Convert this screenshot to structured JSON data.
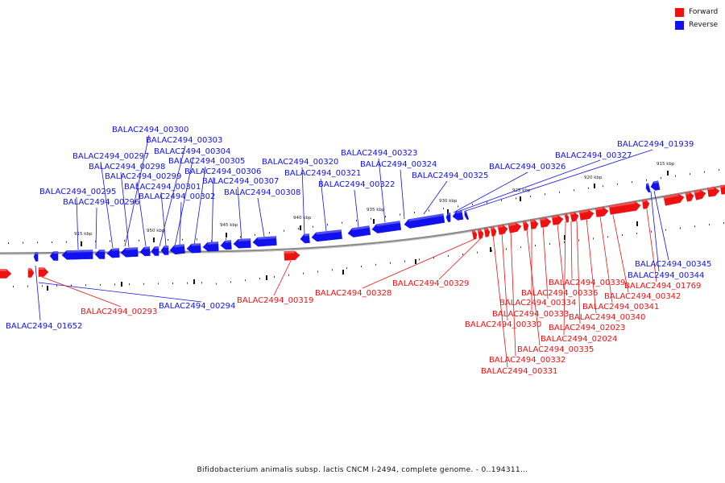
{
  "colors": {
    "forward": "#ee1111",
    "reverse": "#1111ee",
    "axis": "#8a8a8a"
  },
  "legend": [
    {
      "label": "Forward",
      "color": "#ee1111"
    },
    {
      "label": "Reverse",
      "color": "#1111ee"
    }
  ],
  "ticks": [
    "915 kbp",
    "930 kbp",
    "935 kbp",
    "940 kbp",
    "945 kbp",
    "950 kbp",
    "925 kbp",
    "920 kbp",
    "915 kbp"
  ],
  "genes": {
    "reverse": [
      "BALAC2494_00300",
      "BALAC2494_00303",
      "BALAC2494_00304",
      "BALAC2494_00297",
      "BALAC2494_00305",
      "BALAC2494_00298",
      "BALAC2494_00306",
      "BALAC2494_00299",
      "BALAC2494_00307",
      "BALAC2494_00301",
      "BALAC2494_00295",
      "BALAC2494_00308",
      "BALAC2494_00302",
      "BALAC2494_00296",
      "BALAC2494_00320",
      "BALAC2494_00321",
      "BALAC2494_00322",
      "BALAC2494_00323",
      "BALAC2494_00324",
      "BALAC2494_00325",
      "BALAC2494_00326",
      "BALAC2494_00327",
      "BALAC2494_01939",
      "BALAC2494_00345",
      "BALAC2494_00344",
      "BALAC2494_00294",
      "BALAC2494_01652"
    ],
    "forward": [
      "BALAC2494_00293",
      "BALAC2494_00319",
      "BALAC2494_00328",
      "BALAC2494_00329",
      "BALAC2494_00339",
      "BALAC2494_01769",
      "BALAC2494_00336",
      "BALAC2494_00342",
      "BALAC2494_00334",
      "BALAC2494_00341",
      "BALAC2494_00333",
      "BALAC2494_00340",
      "BALAC2494_00330",
      "BALAC2494_02023",
      "BALAC2494_02024",
      "BALAC2494_00335",
      "BALAC2494_00332",
      "BALAC2494_00331"
    ]
  },
  "caption": "Bifidobacterium animalis subsp. lactis CNCM I-2494, complete genome. - 0..194311..."
}
